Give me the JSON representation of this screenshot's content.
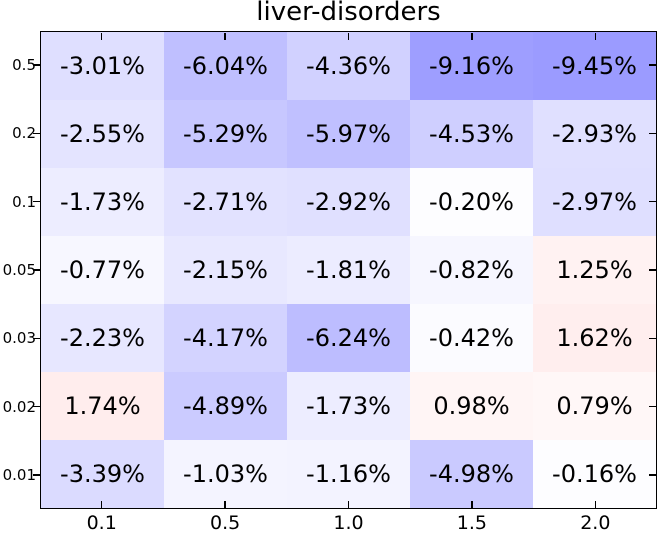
{
  "chart_data": {
    "type": "heatmap",
    "title": "liver-disorders",
    "x_tick_labels": [
      "0.1",
      "0.5",
      "1.0",
      "1.5",
      "2.0"
    ],
    "y_tick_labels": [
      "0.5",
      "0.2",
      "0.1",
      "0.05",
      "0.03",
      "0.02",
      "0.01"
    ],
    "values": [
      [
        -3.01,
        -6.04,
        -4.36,
        -9.16,
        -9.45
      ],
      [
        -2.55,
        -5.29,
        -5.97,
        -4.53,
        -2.93
      ],
      [
        -1.73,
        -2.71,
        -2.92,
        -0.2,
        -2.97
      ],
      [
        -0.77,
        -2.15,
        -1.81,
        -0.82,
        1.25
      ],
      [
        -2.23,
        -4.17,
        -6.24,
        -0.42,
        1.62
      ],
      [
        1.74,
        -4.89,
        -1.73,
        0.98,
        0.79
      ],
      [
        -3.39,
        -1.03,
        -1.16,
        -4.98,
        -0.16
      ]
    ],
    "value_suffix": "%",
    "value_decimals": 2,
    "colormap": {
      "name": "bwr",
      "vmin": -24,
      "vmax": 24,
      "negative_color": "#0000ff",
      "zero_color": "#ffffff",
      "positive_color": "#ff0000"
    },
    "cell_text_color": "#000000",
    "axes": {
      "border_color": "#000000",
      "background": "#ffffff",
      "grid": false,
      "legend": false
    }
  }
}
